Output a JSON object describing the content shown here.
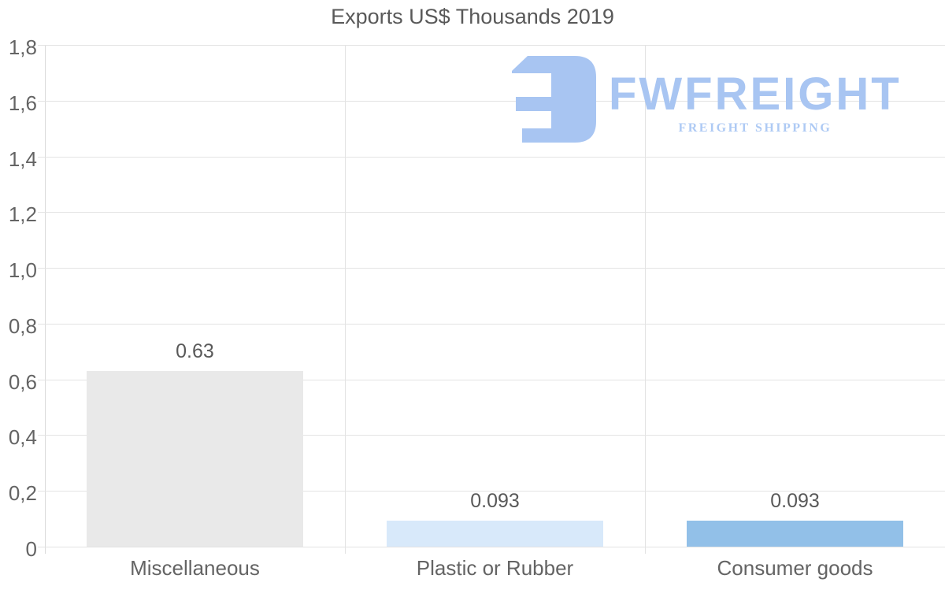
{
  "watermark": {
    "brand": "FWFREIGHT",
    "tagline": "FREIGHT SHIPPING",
    "color": "#a8c5f2"
  },
  "colors": {
    "grid": "#e3e3e3",
    "axis": "#dadada",
    "title_text": "#595959",
    "axis_text": "#646464",
    "value_text": "#595959"
  },
  "chart_data": {
    "type": "bar",
    "title": "Exports US$ Thousands 2019",
    "categories": [
      "Miscellaneous",
      "Plastic or Rubber",
      "Consumer goods"
    ],
    "values": [
      0.63,
      0.093,
      0.093
    ],
    "value_labels": [
      "0.63",
      "0.093",
      "0.093"
    ],
    "bar_colors": [
      "#e9e9e9",
      "#d8e9fa",
      "#92c0e8"
    ],
    "xlabel": "",
    "ylabel": "",
    "ylim": [
      0,
      1.8
    ],
    "yticks": [
      {
        "label": "1,8",
        "value": 1.8
      },
      {
        "label": "1,6",
        "value": 1.6
      },
      {
        "label": "1,4",
        "value": 1.4
      },
      {
        "label": "1,2",
        "value": 1.2
      },
      {
        "label": "1,0",
        "value": 1.0
      },
      {
        "label": "0,8",
        "value": 0.8
      },
      {
        "label": "0,6",
        "value": 0.6
      },
      {
        "label": "0,4",
        "value": 0.4
      },
      {
        "label": "0,2",
        "value": 0.2
      },
      {
        "label": "0",
        "value": 0.0
      }
    ],
    "grid": true,
    "legend": false,
    "decimal_separator_axis": ","
  }
}
